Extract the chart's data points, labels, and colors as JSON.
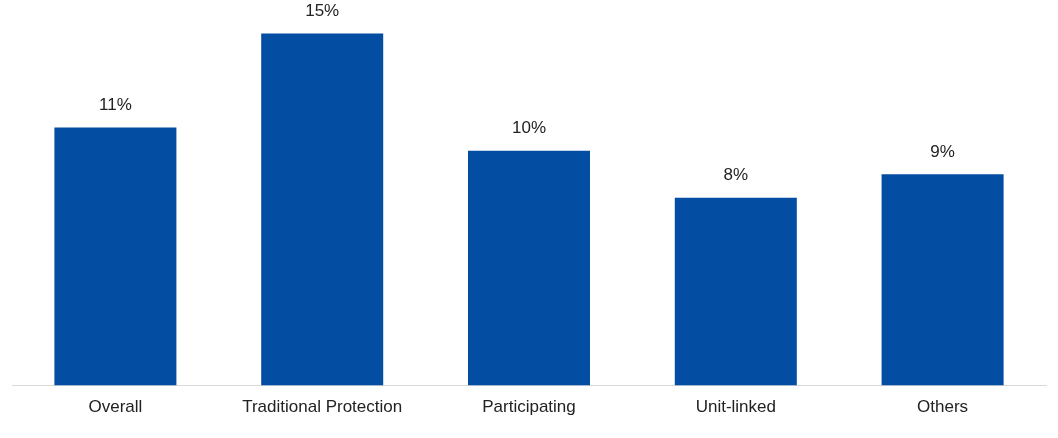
{
  "chart_data": {
    "type": "bar",
    "categories": [
      "Overall",
      "Traditional Protection",
      "Participating",
      "Unit-linked",
      "Others"
    ],
    "values": [
      11,
      15,
      10,
      8,
      9
    ],
    "color": "#034ea2",
    "value_labels": [
      "11%",
      "15%",
      "10%",
      "8%",
      "9%"
    ],
    "grid": false,
    "legend": false,
    "tick_labels": "x"
  }
}
